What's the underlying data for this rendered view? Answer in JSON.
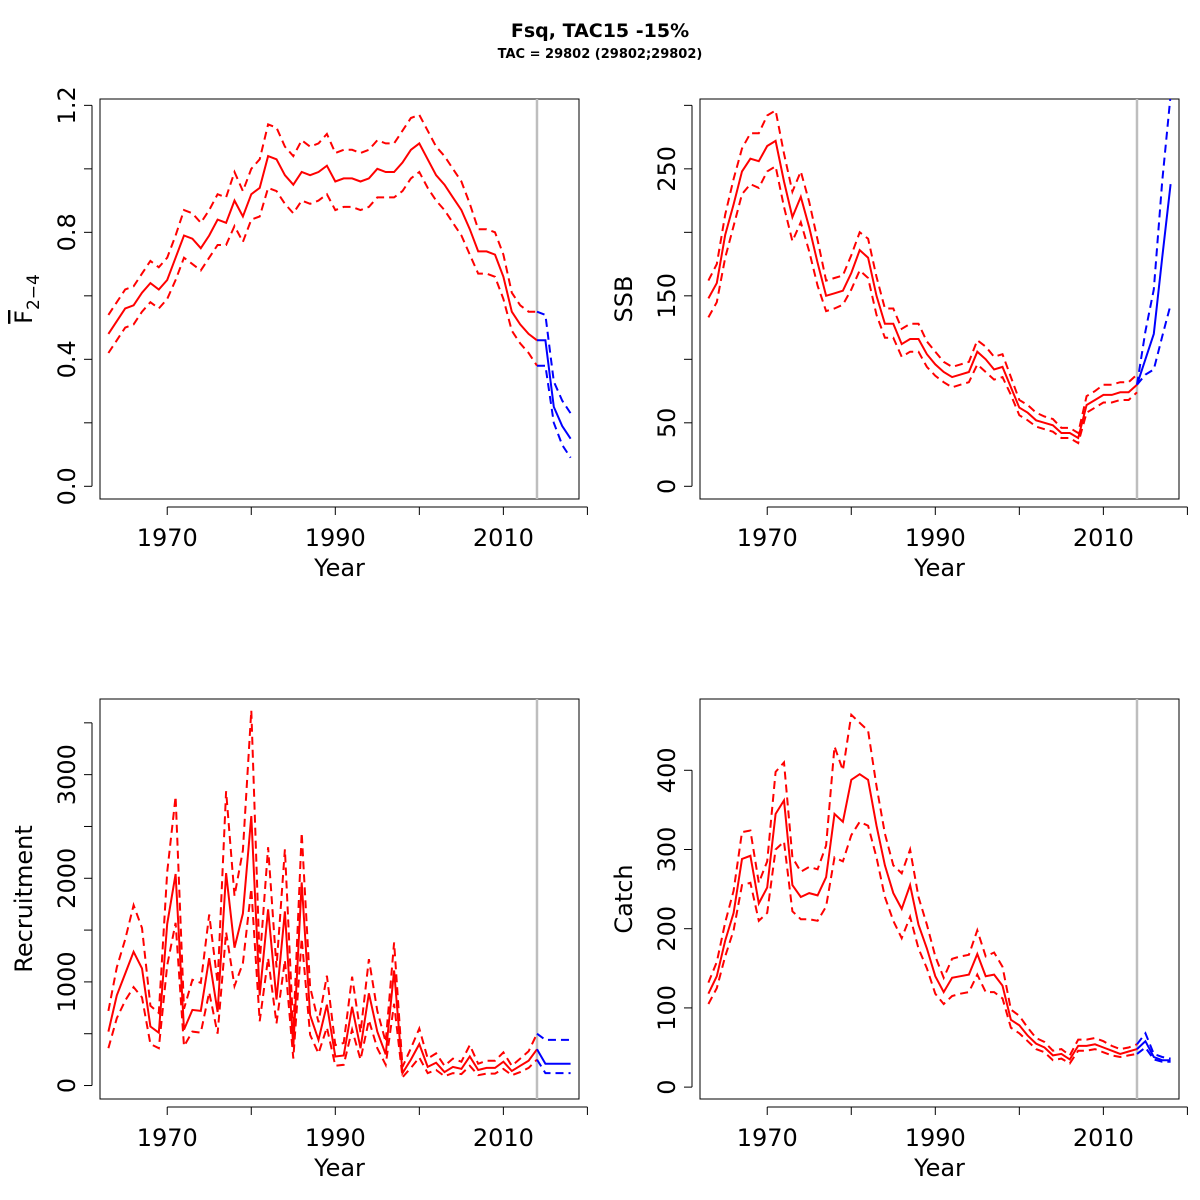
{
  "title": "Fsq, TAC15 -15%",
  "subtitle": "TAC = 29802 (29802;29802)",
  "colors": {
    "historical": "#ff0000",
    "forecast": "#0000ff",
    "vline": "#bebebe",
    "axis": "#000000"
  },
  "chart_data": [
    {
      "id": "fbar",
      "type": "line",
      "xlabel": "Year",
      "ylabel_main": "F",
      "ylabel_sub": "2−4",
      "ylabel_overbar": true,
      "xlim": [
        1962,
        2019
      ],
      "ylim": [
        -0.04,
        1.22
      ],
      "xticks": [
        1970,
        1990,
        2010
      ],
      "xticks_minor": [
        1980,
        2000,
        2020
      ],
      "yticks": [
        0.0,
        0.4,
        0.8,
        1.2
      ],
      "yticklabels": [
        "0.0",
        "0.4",
        "0.8",
        "1.2"
      ],
      "yticks_minor": [
        0.2,
        0.6,
        1.0
      ],
      "vline": 2014,
      "historical": {
        "x": [
          1963,
          1964,
          1965,
          1966,
          1967,
          1968,
          1969,
          1970,
          1971,
          1972,
          1973,
          1974,
          1975,
          1976,
          1977,
          1978,
          1979,
          1980,
          1981,
          1982,
          1983,
          1984,
          1985,
          1986,
          1987,
          1988,
          1989,
          1990,
          1991,
          1992,
          1993,
          1994,
          1995,
          1996,
          1997,
          1998,
          1999,
          2000,
          2001,
          2002,
          2003,
          2004,
          2005,
          2006,
          2007,
          2008,
          2009,
          2010,
          2011,
          2012,
          2013,
          2014
        ],
        "y": [
          0.48,
          0.52,
          0.56,
          0.57,
          0.61,
          0.64,
          0.62,
          0.65,
          0.72,
          0.79,
          0.78,
          0.75,
          0.79,
          0.84,
          0.83,
          0.9,
          0.85,
          0.92,
          0.94,
          1.04,
          1.03,
          0.98,
          0.95,
          0.99,
          0.98,
          0.99,
          1.01,
          0.96,
          0.97,
          0.97,
          0.96,
          0.97,
          1.0,
          0.99,
          0.99,
          1.02,
          1.06,
          1.08,
          1.03,
          0.98,
          0.95,
          0.91,
          0.87,
          0.81,
          0.74,
          0.74,
          0.73,
          0.66,
          0.55,
          0.51,
          0.48,
          0.46
        ],
        "lower": [
          0.42,
          0.46,
          0.5,
          0.51,
          0.55,
          0.58,
          0.56,
          0.59,
          0.65,
          0.72,
          0.7,
          0.68,
          0.72,
          0.76,
          0.76,
          0.82,
          0.77,
          0.84,
          0.85,
          0.94,
          0.93,
          0.89,
          0.86,
          0.9,
          0.89,
          0.9,
          0.92,
          0.87,
          0.88,
          0.88,
          0.87,
          0.88,
          0.91,
          0.91,
          0.91,
          0.93,
          0.97,
          0.99,
          0.94,
          0.9,
          0.87,
          0.83,
          0.79,
          0.73,
          0.67,
          0.67,
          0.66,
          0.59,
          0.49,
          0.45,
          0.42,
          0.38
        ],
        "upper": [
          0.54,
          0.58,
          0.62,
          0.63,
          0.67,
          0.71,
          0.69,
          0.72,
          0.79,
          0.87,
          0.86,
          0.83,
          0.87,
          0.92,
          0.91,
          0.99,
          0.93,
          1.0,
          1.03,
          1.14,
          1.13,
          1.07,
          1.04,
          1.09,
          1.07,
          1.08,
          1.11,
          1.05,
          1.06,
          1.06,
          1.05,
          1.06,
          1.09,
          1.08,
          1.08,
          1.12,
          1.16,
          1.17,
          1.12,
          1.07,
          1.04,
          1.0,
          0.96,
          0.89,
          0.81,
          0.81,
          0.8,
          0.73,
          0.61,
          0.57,
          0.55,
          0.55
        ]
      },
      "forecast": {
        "x": [
          2014,
          2015,
          2016,
          2017,
          2018
        ],
        "y": [
          0.46,
          0.46,
          0.25,
          0.19,
          0.15
        ],
        "lower": [
          0.38,
          0.38,
          0.2,
          0.13,
          0.09
        ],
        "upper": [
          0.55,
          0.54,
          0.33,
          0.27,
          0.23
        ]
      }
    },
    {
      "id": "ssb",
      "type": "line",
      "xlabel": "Year",
      "ylabel": "SSB",
      "xlim": [
        1962,
        2019
      ],
      "ylim": [
        -10,
        305
      ],
      "xticks": [
        1970,
        1990,
        2010
      ],
      "xticks_minor": [
        1980,
        2000,
        2020
      ],
      "yticks": [
        0,
        50,
        150,
        250
      ],
      "yticklabels": [
        "0",
        "50",
        "150",
        "250"
      ],
      "yticks_minor": [
        100,
        200,
        300
      ],
      "vline": 2014,
      "historical": {
        "x": [
          1963,
          1964,
          1965,
          1966,
          1967,
          1968,
          1969,
          1970,
          1971,
          1972,
          1973,
          1974,
          1975,
          1976,
          1977,
          1978,
          1979,
          1980,
          1981,
          1982,
          1983,
          1984,
          1985,
          1986,
          1987,
          1988,
          1989,
          1990,
          1991,
          1992,
          1993,
          1994,
          1995,
          1996,
          1997,
          1998,
          1999,
          2000,
          2001,
          2002,
          2003,
          2004,
          2005,
          2006,
          2007,
          2008,
          2009,
          2010,
          2011,
          2012,
          2013,
          2014
        ],
        "y": [
          148,
          160,
          198,
          222,
          248,
          258,
          256,
          268,
          272,
          240,
          212,
          228,
          204,
          176,
          150,
          152,
          154,
          168,
          186,
          180,
          150,
          128,
          128,
          112,
          116,
          116,
          104,
          96,
          90,
          86,
          88,
          90,
          106,
          100,
          92,
          94,
          78,
          62,
          58,
          52,
          50,
          48,
          42,
          42,
          38,
          64,
          68,
          72,
          72,
          74,
          74,
          80
        ],
        "lower": [
          133,
          145,
          180,
          205,
          230,
          238,
          235,
          248,
          252,
          220,
          193,
          208,
          185,
          158,
          138,
          140,
          143,
          155,
          170,
          164,
          135,
          117,
          117,
          102,
          106,
          106,
          94,
          87,
          82,
          78,
          80,
          82,
          96,
          90,
          84,
          86,
          72,
          56,
          52,
          47,
          45,
          43,
          38,
          38,
          34,
          58,
          62,
          66,
          66,
          68,
          68,
          74
        ],
        "upper": [
          162,
          175,
          214,
          242,
          266,
          278,
          278,
          292,
          296,
          262,
          232,
          248,
          224,
          194,
          162,
          164,
          166,
          182,
          200,
          195,
          165,
          140,
          140,
          124,
          128,
          128,
          114,
          106,
          98,
          94,
          96,
          98,
          115,
          110,
          102,
          104,
          86,
          68,
          64,
          58,
          55,
          53,
          46,
          46,
          42,
          71,
          75,
          80,
          80,
          82,
          82,
          88
        ]
      },
      "forecast": {
        "x": [
          2014,
          2015,
          2016,
          2017,
          2018
        ],
        "y": [
          80,
          100,
          120,
          180,
          238
        ],
        "lower": [
          80,
          88,
          92,
          118,
          143
        ],
        "upper": [
          80,
          122,
          155,
          240,
          308
        ]
      }
    },
    {
      "id": "recruitment",
      "type": "line",
      "xlabel": "Year",
      "ylabel": "Recruitment",
      "xlim": [
        1962,
        2019
      ],
      "ylim": [
        -130,
        3730
      ],
      "xticks": [
        1970,
        1990,
        2010
      ],
      "xticks_minor": [
        1980,
        2000,
        2020
      ],
      "yticks": [
        0,
        1000,
        2000,
        3000
      ],
      "yticklabels": [
        "0",
        "1000",
        "2000",
        "3000"
      ],
      "yticks_minor": [
        500,
        1500,
        2500,
        3500
      ],
      "vline": 2014,
      "historical": {
        "x": [
          1963,
          1964,
          1965,
          1966,
          1967,
          1968,
          1969,
          1970,
          1971,
          1972,
          1973,
          1974,
          1975,
          1976,
          1977,
          1978,
          1979,
          1980,
          1981,
          1982,
          1983,
          1984,
          1985,
          1986,
          1987,
          1988,
          1989,
          1990,
          1991,
          1992,
          1993,
          1994,
          1995,
          1996,
          1997,
          1998,
          1999,
          2000,
          2001,
          2002,
          2003,
          2004,
          2005,
          2006,
          2007,
          2008,
          2009,
          2010,
          2011,
          2012,
          2013,
          2014
        ],
        "y": [
          520,
          870,
          1080,
          1290,
          1130,
          570,
          510,
          1560,
          2040,
          540,
          730,
          720,
          1230,
          710,
          2050,
          1330,
          1660,
          2600,
          870,
          1700,
          830,
          1680,
          370,
          1960,
          680,
          440,
          780,
          280,
          290,
          760,
          360,
          890,
          520,
          300,
          1110,
          120,
          250,
          400,
          180,
          220,
          130,
          180,
          160,
          280,
          150,
          170,
          170,
          230,
          140,
          190,
          240,
          350
        ],
        "lower": [
          360,
          650,
          820,
          950,
          850,
          400,
          360,
          1160,
          1570,
          380,
          520,
          510,
          900,
          500,
          1480,
          960,
          1180,
          1900,
          620,
          1230,
          600,
          1210,
          260,
          1420,
          490,
          310,
          560,
          190,
          200,
          540,
          250,
          630,
          360,
          200,
          790,
          80,
          170,
          270,
          120,
          150,
          90,
          120,
          110,
          190,
          100,
          115,
          115,
          160,
          100,
          130,
          170,
          250
        ],
        "upper": [
          720,
          1140,
          1410,
          1740,
          1520,
          770,
          700,
          2060,
          2790,
          740,
          1020,
          990,
          1650,
          990,
          2840,
          1830,
          2270,
          3620,
          1190,
          2300,
          1140,
          2280,
          530,
          2440,
          950,
          610,
          1060,
          390,
          410,
          1050,
          510,
          1220,
          720,
          420,
          1380,
          180,
          360,
          550,
          260,
          310,
          190,
          260,
          230,
          390,
          210,
          240,
          240,
          320,
          190,
          260,
          330,
          500
        ]
      },
      "forecast": {
        "x": [
          2014,
          2015,
          2016,
          2017,
          2018
        ],
        "y": [
          350,
          210,
          210,
          210,
          210
        ],
        "lower": [
          250,
          120,
          120,
          120,
          120
        ],
        "upper": [
          500,
          440,
          440,
          440,
          440
        ]
      }
    },
    {
      "id": "catch",
      "type": "line",
      "xlabel": "Year",
      "ylabel": "Catch",
      "xlim": [
        1962,
        2019
      ],
      "ylim": [
        -15,
        490
      ],
      "xticks": [
        1970,
        1990,
        2010
      ],
      "xticks_minor": [
        1980,
        2000,
        2020
      ],
      "yticks": [
        0,
        100,
        200,
        300,
        400
      ],
      "yticklabels": [
        "0",
        "100",
        "200",
        "300",
        "400"
      ],
      "yticks_minor": [],
      "vline": 2014,
      "historical": {
        "x": [
          1963,
          1964,
          1965,
          1966,
          1967,
          1968,
          1969,
          1970,
          1971,
          1972,
          1973,
          1974,
          1975,
          1976,
          1977,
          1978,
          1979,
          1980,
          1981,
          1982,
          1983,
          1984,
          1985,
          1986,
          1987,
          1988,
          1989,
          1990,
          1991,
          1992,
          1993,
          1994,
          1995,
          1996,
          1997,
          1998,
          1999,
          2000,
          2001,
          2002,
          2003,
          2004,
          2005,
          2006,
          2007,
          2008,
          2009,
          2010,
          2011,
          2012,
          2013,
          2014
        ],
        "y": [
          118,
          140,
          185,
          220,
          288,
          292,
          232,
          252,
          345,
          362,
          255,
          240,
          245,
          242,
          265,
          345,
          335,
          388,
          395,
          388,
          330,
          280,
          245,
          225,
          255,
          205,
          175,
          140,
          120,
          138,
          140,
          142,
          168,
          140,
          142,
          128,
          85,
          78,
          65,
          55,
          50,
          40,
          42,
          35,
          52,
          52,
          54,
          50,
          46,
          42,
          45,
          48
        ],
        "lower": [
          105,
          125,
          165,
          198,
          255,
          258,
          210,
          220,
          300,
          310,
          222,
          212,
          212,
          210,
          228,
          290,
          285,
          318,
          335,
          330,
          290,
          240,
          210,
          188,
          215,
          175,
          150,
          118,
          105,
          115,
          118,
          120,
          142,
          120,
          120,
          112,
          75,
          68,
          58,
          48,
          44,
          34,
          36,
          30,
          46,
          46,
          48,
          44,
          40,
          38,
          40,
          42
        ],
        "upper": [
          132,
          158,
          208,
          248,
          322,
          324,
          258,
          285,
          398,
          410,
          290,
          272,
          278,
          275,
          305,
          430,
          400,
          470,
          460,
          450,
          380,
          320,
          280,
          270,
          300,
          240,
          205,
          165,
          138,
          162,
          165,
          167,
          198,
          165,
          170,
          152,
          98,
          90,
          75,
          62,
          57,
          46,
          48,
          40,
          60,
          60,
          62,
          58,
          52,
          48,
          50,
          54
        ]
      },
      "forecast": {
        "x": [
          2014,
          2015,
          2016,
          2017,
          2018
        ],
        "y": [
          48,
          58,
          38,
          34,
          34
        ],
        "lower": [
          42,
          50,
          35,
          32,
          32
        ],
        "upper": [
          54,
          68,
          42,
          38,
          36
        ]
      }
    }
  ]
}
